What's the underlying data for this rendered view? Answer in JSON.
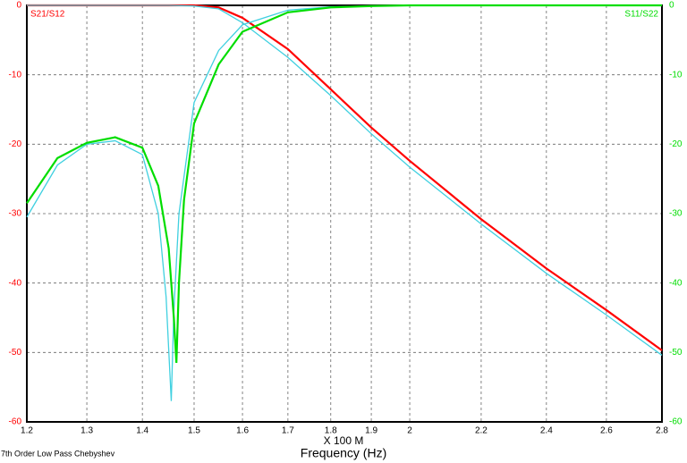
{
  "chart_data": {
    "type": "line",
    "xlabel_prefix": "X 100 M",
    "xlabel": "Frequency (Hz)",
    "footer": "7th Order Low Pass Chebyshev",
    "xlim": [
      1.2,
      2.8
    ],
    "xscale": "log",
    "xticks": [
      1.2,
      1.3,
      1.4,
      1.5,
      1.6,
      1.7,
      1.8,
      1.9,
      2,
      2.2,
      2.4,
      2.6,
      2.8
    ],
    "ylim": [
      -60,
      0
    ],
    "yticks": [
      0,
      -10,
      -20,
      -30,
      -40,
      -50,
      -60
    ],
    "y2lim": [
      -60,
      0
    ],
    "y2ticks": [
      0,
      -10,
      -20,
      -30,
      -40,
      -50,
      -60
    ],
    "grid": true,
    "series": [
      {
        "name": "S21/S12",
        "color": "#ff0000",
        "x": [
          1.2,
          1.3,
          1.4,
          1.5,
          1.55,
          1.6,
          1.7,
          1.8,
          1.9,
          2,
          2.2,
          2.4,
          2.6,
          2.8
        ],
        "values": [
          0,
          0,
          0,
          0,
          -0.3,
          -1.8,
          -6.3,
          -12.1,
          -17.6,
          -22.4,
          -30.8,
          -37.9,
          -43.9,
          -49.7
        ]
      },
      {
        "color": "#40d0e0",
        "x": [
          1.2,
          1.3,
          1.4,
          1.45,
          1.5,
          1.55,
          1.6,
          1.7,
          1.8,
          1.9,
          2,
          2.2,
          2.4,
          2.6,
          2.8
        ],
        "values": [
          0,
          0,
          0,
          0,
          -0.1,
          -0.5,
          -2.5,
          -7.5,
          -13,
          -18.5,
          -23.3,
          -31.5,
          -38.6,
          -44.6,
          -50.4
        ]
      },
      {
        "color": "#40d0e0",
        "axis": "y2",
        "x": [
          1.2,
          1.25,
          1.3,
          1.35,
          1.4,
          1.43,
          1.445,
          1.455,
          1.46,
          1.47,
          1.5,
          1.55,
          1.6,
          1.7,
          1.8,
          1.9,
          2,
          2.8
        ],
        "values": [
          -30.5,
          -23,
          -20,
          -19.5,
          -21.5,
          -30,
          -42,
          -57,
          -44,
          -30,
          -14,
          -6.5,
          -2.8,
          -0.7,
          -0.2,
          -0.1,
          0,
          0
        ]
      },
      {
        "name": "S11/S22",
        "color": "#00dd00",
        "axis": "y2",
        "x": [
          1.2,
          1.25,
          1.3,
          1.35,
          1.4,
          1.43,
          1.45,
          1.46,
          1.465,
          1.47,
          1.48,
          1.5,
          1.55,
          1.6,
          1.7,
          1.8,
          1.9,
          2,
          2.8
        ],
        "values": [
          -28.5,
          -22,
          -19.8,
          -19,
          -20.5,
          -26,
          -35,
          -45,
          -51.5,
          -40,
          -28,
          -17,
          -8.5,
          -3.8,
          -1,
          -0.3,
          -0.1,
          0,
          0
        ]
      }
    ]
  }
}
